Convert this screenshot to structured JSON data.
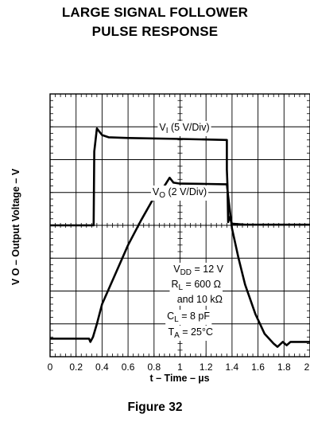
{
  "title_line1": "LARGE SIGNAL FOLLOWER",
  "title_line2": "PULSE RESPONSE",
  "figure_label": "Figure 32",
  "chart_data": {
    "type": "line",
    "xlabel": "t – Time – µs",
    "ylabel": "V O – Output Voltage – V",
    "xlim": [
      0,
      2
    ],
    "x_ticks": [
      "0",
      "0.2",
      "0.4",
      "0.6",
      "0.8",
      "1",
      "1.2",
      "1.4",
      "1.6",
      "1.8",
      "2"
    ],
    "grid": true,
    "grid_divisions": {
      "x": 10,
      "y": 8
    },
    "annotations": {
      "vi_label": "VI (5 V/Div)",
      "vo_label": "VO (2 V/Div)",
      "vdd": "VDD = 12 V",
      "rl": "RL = 600 Ω",
      "rl2": "and 10 kΩ",
      "cl": "CL = 8 pF",
      "ta": "TA = 25°C"
    },
    "series": [
      {
        "name": "VI (5 V/Div)",
        "unit_note": "y in screen divisions from bottom of graticule",
        "x": [
          0,
          0.335,
          0.34,
          0.36,
          0.4,
          0.45,
          0.6,
          1.0,
          1.36,
          1.36,
          1.365,
          1.37,
          1.38,
          1.4,
          1.5,
          2.0
        ],
        "y": [
          4.0,
          4.0,
          6.25,
          6.95,
          6.75,
          6.68,
          6.66,
          6.63,
          6.6,
          5.7,
          5.2,
          4.1,
          4.25,
          4.05,
          4.02,
          4.02
        ]
      },
      {
        "name": "VO (2 V/Div)",
        "unit_note": "y in screen divisions from bottom of graticule",
        "x": [
          0,
          0.3,
          0.31,
          0.33,
          0.36,
          0.4,
          0.5,
          0.6,
          0.7,
          0.8,
          0.88,
          0.92,
          0.95,
          1.0,
          1.2,
          1.34,
          1.36,
          1.37,
          1.4,
          1.45,
          1.5,
          1.58,
          1.65,
          1.72,
          1.75,
          1.79,
          1.82,
          1.85,
          2.0
        ],
        "y": [
          0.55,
          0.55,
          0.45,
          0.6,
          1.0,
          1.6,
          2.5,
          3.4,
          4.15,
          4.85,
          5.2,
          5.45,
          5.3,
          5.27,
          5.26,
          5.25,
          5.25,
          4.9,
          3.9,
          3.0,
          2.2,
          1.3,
          0.7,
          0.4,
          0.3,
          0.45,
          0.35,
          0.45,
          0.45
        ]
      }
    ]
  }
}
